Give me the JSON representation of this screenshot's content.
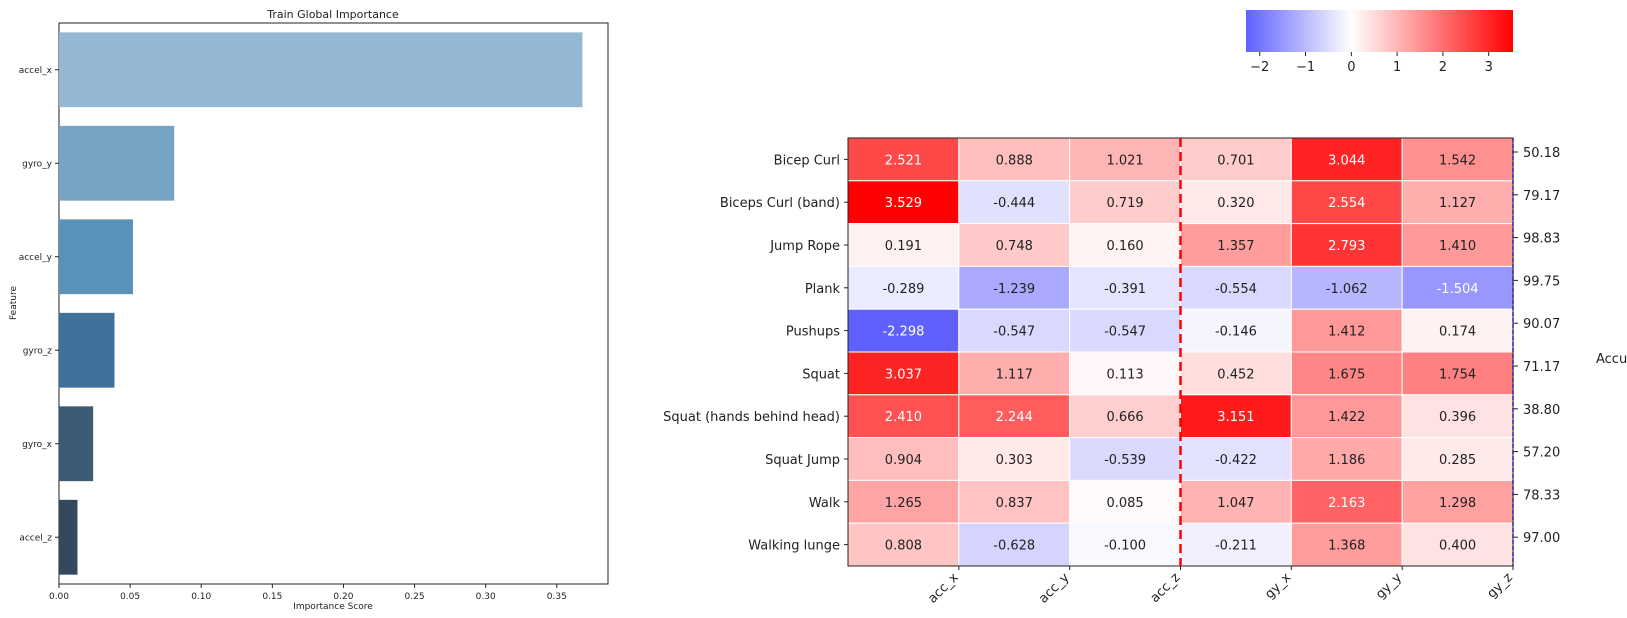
{
  "chart_data": [
    {
      "type": "bar",
      "orientation": "horizontal",
      "title": "Train Global Importance",
      "xlabel": "Importance Score",
      "ylabel": "Feature",
      "categories": [
        "accel_x",
        "gyro_y",
        "accel_y",
        "gyro_z",
        "gyro_x",
        "accel_z"
      ],
      "values": [
        0.368,
        0.081,
        0.052,
        0.039,
        0.024,
        0.013
      ],
      "colors": [
        "#94b8d2",
        "#75a4c4",
        "#5a91b9",
        "#40719a",
        "#3b5a74",
        "#334a5e"
      ],
      "xlim": [
        0,
        0.386
      ],
      "xticks": [
        "0.00",
        "0.05",
        "0.10",
        "0.15",
        "0.20",
        "0.25",
        "0.30",
        "0.35"
      ],
      "grid": false
    },
    {
      "type": "heatmap",
      "rows": [
        "Bicep Curl",
        "Biceps Curl (band)",
        "Jump Rope",
        "Plank",
        "Pushups",
        "Squat",
        "Squat (hands behind head)",
        "Squat Jump",
        "Walk",
        "Walking lunge"
      ],
      "columns": [
        "acc_x",
        "acc_y",
        "acc_z",
        "gy_x",
        "gy_y",
        "gy_z"
      ],
      "values": [
        [
          2.521,
          0.888,
          1.021,
          0.701,
          3.044,
          1.542
        ],
        [
          3.529,
          -0.444,
          0.719,
          0.32,
          2.554,
          1.127
        ],
        [
          0.191,
          0.748,
          0.16,
          1.357,
          2.793,
          1.41
        ],
        [
          -0.289,
          -1.239,
          -0.391,
          -0.554,
          -1.062,
          -1.504
        ],
        [
          -2.298,
          -0.547,
          -0.547,
          -0.146,
          1.412,
          0.174
        ],
        [
          3.037,
          1.117,
          0.113,
          0.452,
          1.675,
          1.754
        ],
        [
          2.41,
          2.244,
          0.666,
          3.151,
          1.422,
          0.396
        ],
        [
          0.904,
          0.303,
          -0.539,
          -0.422,
          1.186,
          0.285
        ],
        [
          1.265,
          0.837,
          0.085,
          1.047,
          2.163,
          1.298
        ],
        [
          0.808,
          -0.628,
          -0.1,
          -0.211,
          1.368,
          0.4
        ]
      ],
      "value_labels": [
        [
          "2.521",
          "0.888",
          "1.021",
          "0.701",
          "3.044",
          "1.542"
        ],
        [
          "3.529",
          "-0.444",
          "0.719",
          "0.320",
          "2.554",
          "1.127"
        ],
        [
          "0.191",
          "0.748",
          "0.160",
          "1.357",
          "2.793",
          "1.410"
        ],
        [
          "-0.289",
          "-1.239",
          "-0.391",
          "-0.554",
          "-1.062",
          "-1.504"
        ],
        [
          "-2.298",
          "-0.547",
          "-0.547",
          "-0.146",
          "1.412",
          "0.174"
        ],
        [
          "3.037",
          "1.117",
          "0.113",
          "0.452",
          "1.675",
          "1.754"
        ],
        [
          "2.410",
          "2.244",
          "0.666",
          "3.151",
          "1.422",
          "0.396"
        ],
        [
          "0.904",
          "0.303",
          "-0.539",
          "-0.422",
          "1.186",
          "0.285"
        ],
        [
          "1.265",
          "0.837",
          "0.085",
          "1.047",
          "2.163",
          "1.298"
        ],
        [
          "0.808",
          "-0.628",
          "-0.100",
          "-0.211",
          "1.368",
          "0.400"
        ]
      ],
      "colormap": "bwr",
      "vmin": -2.3,
      "vmax": 3.53,
      "colorbar_ticks": [
        "−2",
        "−1",
        "0",
        "1",
        "2",
        "3"
      ],
      "colorbar_tick_values": [
        -2,
        -1,
        0,
        1,
        2,
        3
      ],
      "divider_after_column": 2,
      "divider_color": "#ff0000",
      "right_axis_label": "Accuracy",
      "right_axis_values": [
        "50.18",
        "79.17",
        "98.83",
        "99.75",
        "90.07",
        "71.17",
        "38.80",
        "57.20",
        "78.33",
        "97.00"
      ]
    }
  ]
}
